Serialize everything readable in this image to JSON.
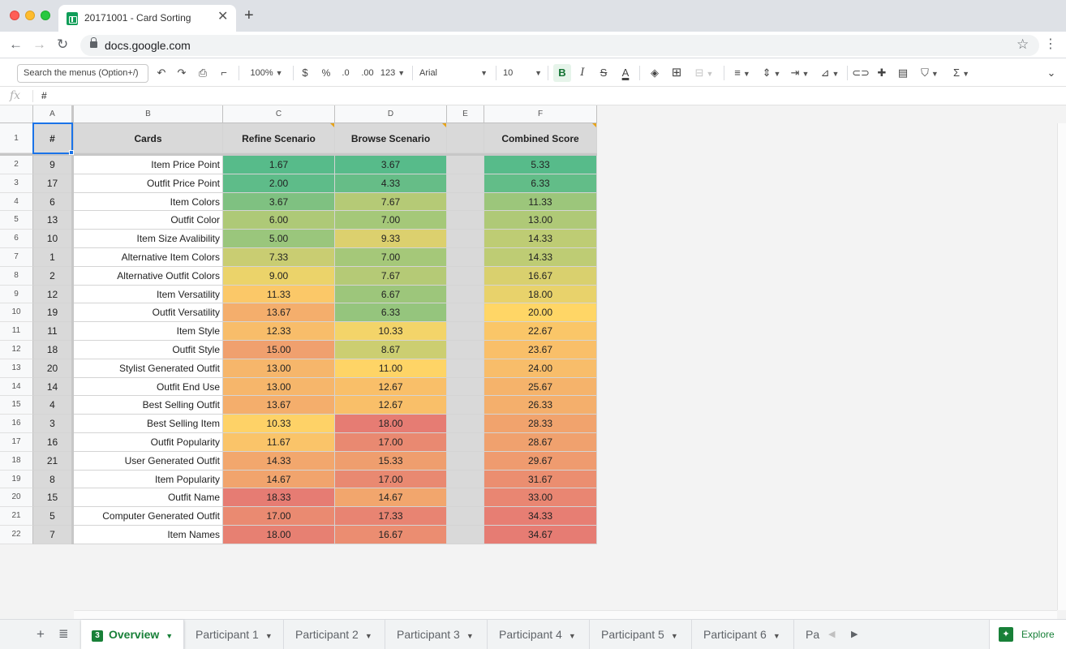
{
  "window": {
    "tab_title": "20171001 - Card Sorting",
    "url": "docs.google.com"
  },
  "toolbar": {
    "search_placeholder": "Search the menus (Option+/)",
    "zoom": "100%",
    "currency_symbol": "$",
    "percent_symbol": "%",
    "decrease_decimal": ".0",
    "increase_decimal": ".00",
    "more_formats": "123",
    "font_family": "Arial",
    "font_size": "10",
    "bold_label": "B"
  },
  "formula_bar": {
    "fx": "fx",
    "value": "#"
  },
  "column_letters": [
    "A",
    "B",
    "C",
    "D",
    "E",
    "F"
  ],
  "header_row": {
    "row_number": "1",
    "col_a": "#",
    "col_b": "Cards",
    "col_c": "Refine Scenario",
    "col_d": "Browse Scenario",
    "col_e": "",
    "col_f": "Combined Score"
  },
  "rows": [
    {
      "row": "2",
      "num": "9",
      "card": "Item Price Point",
      "refine": "1.67",
      "browse": "3.67",
      "combined": "5.33"
    },
    {
      "row": "3",
      "num": "17",
      "card": "Outfit Price Point",
      "refine": "2.00",
      "browse": "4.33",
      "combined": "6.33"
    },
    {
      "row": "4",
      "num": "6",
      "card": "Item Colors",
      "refine": "3.67",
      "browse": "7.67",
      "combined": "11.33"
    },
    {
      "row": "5",
      "num": "13",
      "card": "Outfit Color",
      "refine": "6.00",
      "browse": "7.00",
      "combined": "13.00"
    },
    {
      "row": "6",
      "num": "10",
      "card": "Item Size Avalibility",
      "refine": "5.00",
      "browse": "9.33",
      "combined": "14.33"
    },
    {
      "row": "7",
      "num": "1",
      "card": "Alternative Item Colors",
      "refine": "7.33",
      "browse": "7.00",
      "combined": "14.33"
    },
    {
      "row": "8",
      "num": "2",
      "card": "Alternative Outfit Colors",
      "refine": "9.00",
      "browse": "7.67",
      "combined": "16.67"
    },
    {
      "row": "9",
      "num": "12",
      "card": "Item Versatility",
      "refine": "11.33",
      "browse": "6.67",
      "combined": "18.00"
    },
    {
      "row": "10",
      "num": "19",
      "card": "Outfit Versatility",
      "refine": "13.67",
      "browse": "6.33",
      "combined": "20.00"
    },
    {
      "row": "11",
      "num": "11",
      "card": "Item Style",
      "refine": "12.33",
      "browse": "10.33",
      "combined": "22.67"
    },
    {
      "row": "12",
      "num": "18",
      "card": "Outfit Style",
      "refine": "15.00",
      "browse": "8.67",
      "combined": "23.67"
    },
    {
      "row": "13",
      "num": "20",
      "card": "Stylist Generated Outfit",
      "refine": "13.00",
      "browse": "11.00",
      "combined": "24.00"
    },
    {
      "row": "14",
      "num": "14",
      "card": "Outfit End Use",
      "refine": "13.00",
      "browse": "12.67",
      "combined": "25.67"
    },
    {
      "row": "15",
      "num": "4",
      "card": "Best Selling Outfit",
      "refine": "13.67",
      "browse": "12.67",
      "combined": "26.33"
    },
    {
      "row": "16",
      "num": "3",
      "card": "Best Selling Item",
      "refine": "10.33",
      "browse": "18.00",
      "combined": "28.33"
    },
    {
      "row": "17",
      "num": "16",
      "card": "Outfit Popularity",
      "refine": "11.67",
      "browse": "17.00",
      "combined": "28.67"
    },
    {
      "row": "18",
      "num": "21",
      "card": "User Generated Outfit",
      "refine": "14.33",
      "browse": "15.33",
      "combined": "29.67"
    },
    {
      "row": "19",
      "num": "8",
      "card": "Item Popularity",
      "refine": "14.67",
      "browse": "17.00",
      "combined": "31.67"
    },
    {
      "row": "20",
      "num": "15",
      "card": "Outfit Name",
      "refine": "18.33",
      "browse": "14.67",
      "combined": "33.00"
    },
    {
      "row": "21",
      "num": "5",
      "card": "Computer Generated Outfit",
      "refine": "17.00",
      "browse": "17.33",
      "combined": "34.33"
    },
    {
      "row": "22",
      "num": "7",
      "card": "Item Names",
      "refine": "18.00",
      "browse": "16.67",
      "combined": "34.67"
    }
  ],
  "color_scale": {
    "low": "#57bb8a",
    "mid": "#ffd666",
    "high": "#e67c73"
  },
  "sheet_tabs": {
    "active": {
      "badge": "3",
      "label": "Overview"
    },
    "others": [
      "Participant 1",
      "Participant 2",
      "Participant 3",
      "Participant 4",
      "Participant 5",
      "Participant 6",
      "Pa"
    ],
    "explore_label": "Explore"
  }
}
